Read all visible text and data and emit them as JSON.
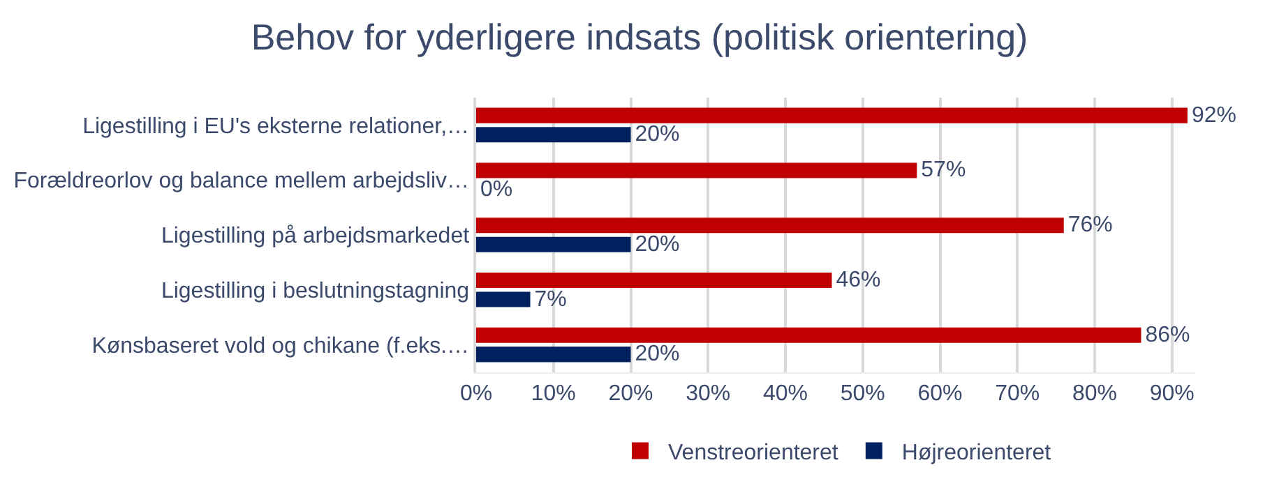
{
  "chart_data": {
    "type": "bar",
    "orientation": "horizontal",
    "title": "Behov for yderligere indsats (politisk orientering)",
    "categories": [
      "Ligestilling i EU's eksterne relationer,…",
      "Forældreorlov og balance mellem arbejdsliv…",
      "Ligestilling på arbejdsmarkedet",
      "Ligestilling i beslutningstagning",
      "Kønsbaseret vold og chikane (f.eks.…"
    ],
    "series": [
      {
        "name": "Venstreorienteret",
        "color": "#c00000",
        "values": [
          92,
          57,
          76,
          46,
          86
        ],
        "value_labels": [
          "92%",
          "57%",
          "76%",
          "46%",
          "86%"
        ]
      },
      {
        "name": "Højreorienteret",
        "color": "#002060",
        "values": [
          20,
          0,
          20,
          7,
          20
        ],
        "value_labels": [
          "20%",
          "0%",
          "20%",
          "7%",
          "20%"
        ]
      }
    ],
    "xlim": [
      0,
      93
    ],
    "xticks": [
      {
        "value": 0,
        "label": "0%"
      },
      {
        "value": 10,
        "label": "10%"
      },
      {
        "value": 20,
        "label": "20%"
      },
      {
        "value": 30,
        "label": "30%"
      },
      {
        "value": 40,
        "label": "40%"
      },
      {
        "value": 50,
        "label": "50%"
      },
      {
        "value": 60,
        "label": "60%"
      },
      {
        "value": 70,
        "label": "70%"
      },
      {
        "value": 80,
        "label": "80%"
      },
      {
        "value": 90,
        "label": "90%"
      }
    ],
    "grid": "x",
    "legend": "bottom"
  }
}
